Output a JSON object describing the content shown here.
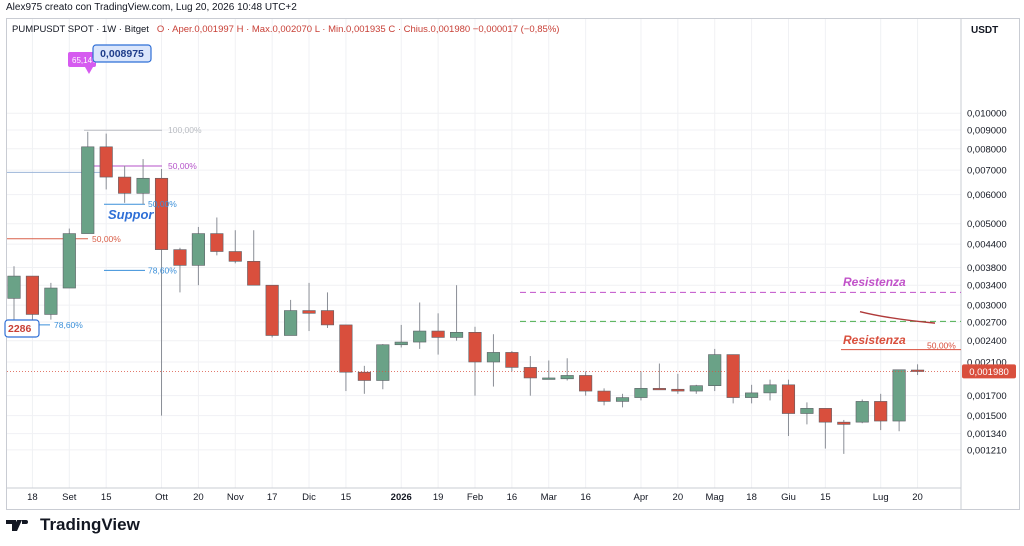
{
  "caption": "Alex975 creato con TradingView.com, Lug 20, 2026 10:48 UTC+2",
  "legend": {
    "symbol": "PUMPUSDT SPOT · 1W · Bitget",
    "ohlc": "O · Aper.0,001997  H · Max.0,002070  L · Min.0,001935  C · Chius.0,001980  −0,000017 (−0,85%)"
  },
  "price_unit": "USDT",
  "footer_brand": "TradingView",
  "colors": {
    "up": "#6aa287",
    "down": "#d94f3d",
    "wick": "#8a8e96",
    "price_line": "#d94f3d",
    "resist_magenta": "#c152c9",
    "support_green": "#4caf50",
    "fib_100": "#b9bcc2",
    "fib_50_purple": "#b452c9",
    "fib_blue": "#3a8fd9",
    "fib_red": "#d9604a"
  },
  "chart_data": {
    "type": "candlestick",
    "scale": "log",
    "ylim": [
      0.00115,
      0.0108
    ],
    "y_ticks": [
      "0,010000",
      "0,009000",
      "0,008000",
      "0,007000",
      "0,006000",
      "0,005000",
      "0,004400",
      "0,003800",
      "0,003400",
      "0,003000",
      "0,002700",
      "0,002400",
      "0,002100",
      "0,001700",
      "0,001500",
      "0,001340",
      "0,001210"
    ],
    "x_ticks": [
      {
        "i": 1,
        "label": "18"
      },
      {
        "i": 3,
        "label": "Set"
      },
      {
        "i": 5,
        "label": "15"
      },
      {
        "i": 8,
        "label": "Ott"
      },
      {
        "i": 10,
        "label": "20"
      },
      {
        "i": 12,
        "label": "Nov"
      },
      {
        "i": 14,
        "label": "17"
      },
      {
        "i": 16,
        "label": "Dic"
      },
      {
        "i": 18,
        "label": "15"
      },
      {
        "i": 21,
        "label": "2026"
      },
      {
        "i": 23,
        "label": "19"
      },
      {
        "i": 25,
        "label": "Feb"
      },
      {
        "i": 27,
        "label": "16"
      },
      {
        "i": 29,
        "label": "Mar"
      },
      {
        "i": 31,
        "label": "16"
      },
      {
        "i": 34,
        "label": "Apr"
      },
      {
        "i": 36,
        "label": "20"
      },
      {
        "i": 38,
        "label": "Mag"
      },
      {
        "i": 40,
        "label": "18"
      },
      {
        "i": 42,
        "label": "Giu"
      },
      {
        "i": 44,
        "label": "15"
      },
      {
        "i": 47,
        "label": "Lug"
      },
      {
        "i": 49,
        "label": "20"
      }
    ],
    "candles": [
      {
        "o": 0.00313,
        "h": 0.00383,
        "l": 0.0025,
        "c": 0.0036
      },
      {
        "o": 0.0036,
        "h": 0.0036,
        "l": 0.0025,
        "c": 0.00283
      },
      {
        "o": 0.00283,
        "h": 0.00345,
        "l": 0.00274,
        "c": 0.00334
      },
      {
        "o": 0.00334,
        "h": 0.00485,
        "l": 0.00334,
        "c": 0.0047
      },
      {
        "o": 0.0047,
        "h": 0.0089,
        "l": 0.0047,
        "c": 0.0081
      },
      {
        "o": 0.0081,
        "h": 0.0088,
        "l": 0.0062,
        "c": 0.0067
      },
      {
        "o": 0.0067,
        "h": 0.0072,
        "l": 0.0057,
        "c": 0.00605
      },
      {
        "o": 0.00605,
        "h": 0.0075,
        "l": 0.00565,
        "c": 0.00665
      },
      {
        "o": 0.00665,
        "h": 0.00705,
        "l": 0.0015,
        "c": 0.00425
      },
      {
        "o": 0.00425,
        "h": 0.0043,
        "l": 0.00325,
        "c": 0.00385
      },
      {
        "o": 0.00385,
        "h": 0.0049,
        "l": 0.0034,
        "c": 0.0047
      },
      {
        "o": 0.0047,
        "h": 0.0052,
        "l": 0.0041,
        "c": 0.0042
      },
      {
        "o": 0.0042,
        "h": 0.0048,
        "l": 0.0039,
        "c": 0.00395
      },
      {
        "o": 0.00395,
        "h": 0.0048,
        "l": 0.0034,
        "c": 0.0034
      },
      {
        "o": 0.0034,
        "h": 0.0034,
        "l": 0.00245,
        "c": 0.00248
      },
      {
        "o": 0.00248,
        "h": 0.0031,
        "l": 0.00248,
        "c": 0.0029
      },
      {
        "o": 0.0029,
        "h": 0.00345,
        "l": 0.00255,
        "c": 0.00285
      },
      {
        "o": 0.0029,
        "h": 0.00325,
        "l": 0.0026,
        "c": 0.00265
      },
      {
        "o": 0.00265,
        "h": 0.00265,
        "l": 0.00175,
        "c": 0.00197
      },
      {
        "o": 0.00197,
        "h": 0.00205,
        "l": 0.00172,
        "c": 0.00187
      },
      {
        "o": 0.00187,
        "h": 0.00235,
        "l": 0.00177,
        "c": 0.00234
      },
      {
        "o": 0.00234,
        "h": 0.00265,
        "l": 0.0023,
        "c": 0.00238
      },
      {
        "o": 0.00238,
        "h": 0.00305,
        "l": 0.00228,
        "c": 0.00255
      },
      {
        "o": 0.00255,
        "h": 0.00285,
        "l": 0.0022,
        "c": 0.00245
      },
      {
        "o": 0.00245,
        "h": 0.0034,
        "l": 0.0024,
        "c": 0.00253
      },
      {
        "o": 0.00253,
        "h": 0.00262,
        "l": 0.0017,
        "c": 0.0021
      },
      {
        "o": 0.0021,
        "h": 0.0025,
        "l": 0.0018,
        "c": 0.00223
      },
      {
        "o": 0.00223,
        "h": 0.00225,
        "l": 0.00198,
        "c": 0.00203
      },
      {
        "o": 0.00203,
        "h": 0.00218,
        "l": 0.0017,
        "c": 0.0019
      },
      {
        "o": 0.0019,
        "h": 0.00212,
        "l": 0.0019,
        "c": 0.0019
      },
      {
        "o": 0.00189,
        "h": 0.00215,
        "l": 0.00187,
        "c": 0.00193
      },
      {
        "o": 0.00193,
        "h": 0.00198,
        "l": 0.0017,
        "c": 0.00175
      },
      {
        "o": 0.00175,
        "h": 0.00178,
        "l": 0.0016,
        "c": 0.00164
      },
      {
        "o": 0.00164,
        "h": 0.00172,
        "l": 0.00158,
        "c": 0.00168
      },
      {
        "o": 0.00168,
        "h": 0.00198,
        "l": 0.00165,
        "c": 0.00178
      },
      {
        "o": 0.00178,
        "h": 0.00208,
        "l": 0.00177,
        "c": 0.00177
      },
      {
        "o": 0.00177,
        "h": 0.00195,
        "l": 0.00172,
        "c": 0.00175
      },
      {
        "o": 0.00175,
        "h": 0.00182,
        "l": 0.00172,
        "c": 0.00181
      },
      {
        "o": 0.00181,
        "h": 0.00228,
        "l": 0.00175,
        "c": 0.0022
      },
      {
        "o": 0.0022,
        "h": 0.0022,
        "l": 0.00162,
        "c": 0.00168
      },
      {
        "o": 0.00168,
        "h": 0.00182,
        "l": 0.00162,
        "c": 0.00173
      },
      {
        "o": 0.00173,
        "h": 0.00188,
        "l": 0.00165,
        "c": 0.00182
      },
      {
        "o": 0.00182,
        "h": 0.00188,
        "l": 0.00132,
        "c": 0.00152
      },
      {
        "o": 0.00152,
        "h": 0.00163,
        "l": 0.00142,
        "c": 0.00157
      },
      {
        "o": 0.00157,
        "h": 0.00157,
        "l": 0.00122,
        "c": 0.00144
      },
      {
        "o": 0.00144,
        "h": 0.00146,
        "l": 0.00118,
        "c": 0.00142
      },
      {
        "o": 0.00144,
        "h": 0.00166,
        "l": 0.00143,
        "c": 0.00164
      },
      {
        "o": 0.00164,
        "h": 0.00172,
        "l": 0.00137,
        "c": 0.00145
      },
      {
        "o": 0.00145,
        "h": 0.002,
        "l": 0.00136,
        "c": 0.002
      },
      {
        "o": 0.001997,
        "h": 0.00207,
        "l": 0.001935,
        "c": 0.00198
      }
    ],
    "current_price": {
      "value": 0.00198,
      "label": "0,001980"
    },
    "annotations": {
      "high_badge": "0,008975",
      "high_pct": "65,14%",
      "low_box": "2286",
      "support_text": "Suppor",
      "resist_magenta_text": "Resistenza",
      "resist_red_text": "Resistenza",
      "fib_labels": [
        "100,00%",
        "50,00%",
        "50,00%",
        "50,00%",
        "78,60%",
        "78,60%",
        "50,00%"
      ]
    }
  }
}
